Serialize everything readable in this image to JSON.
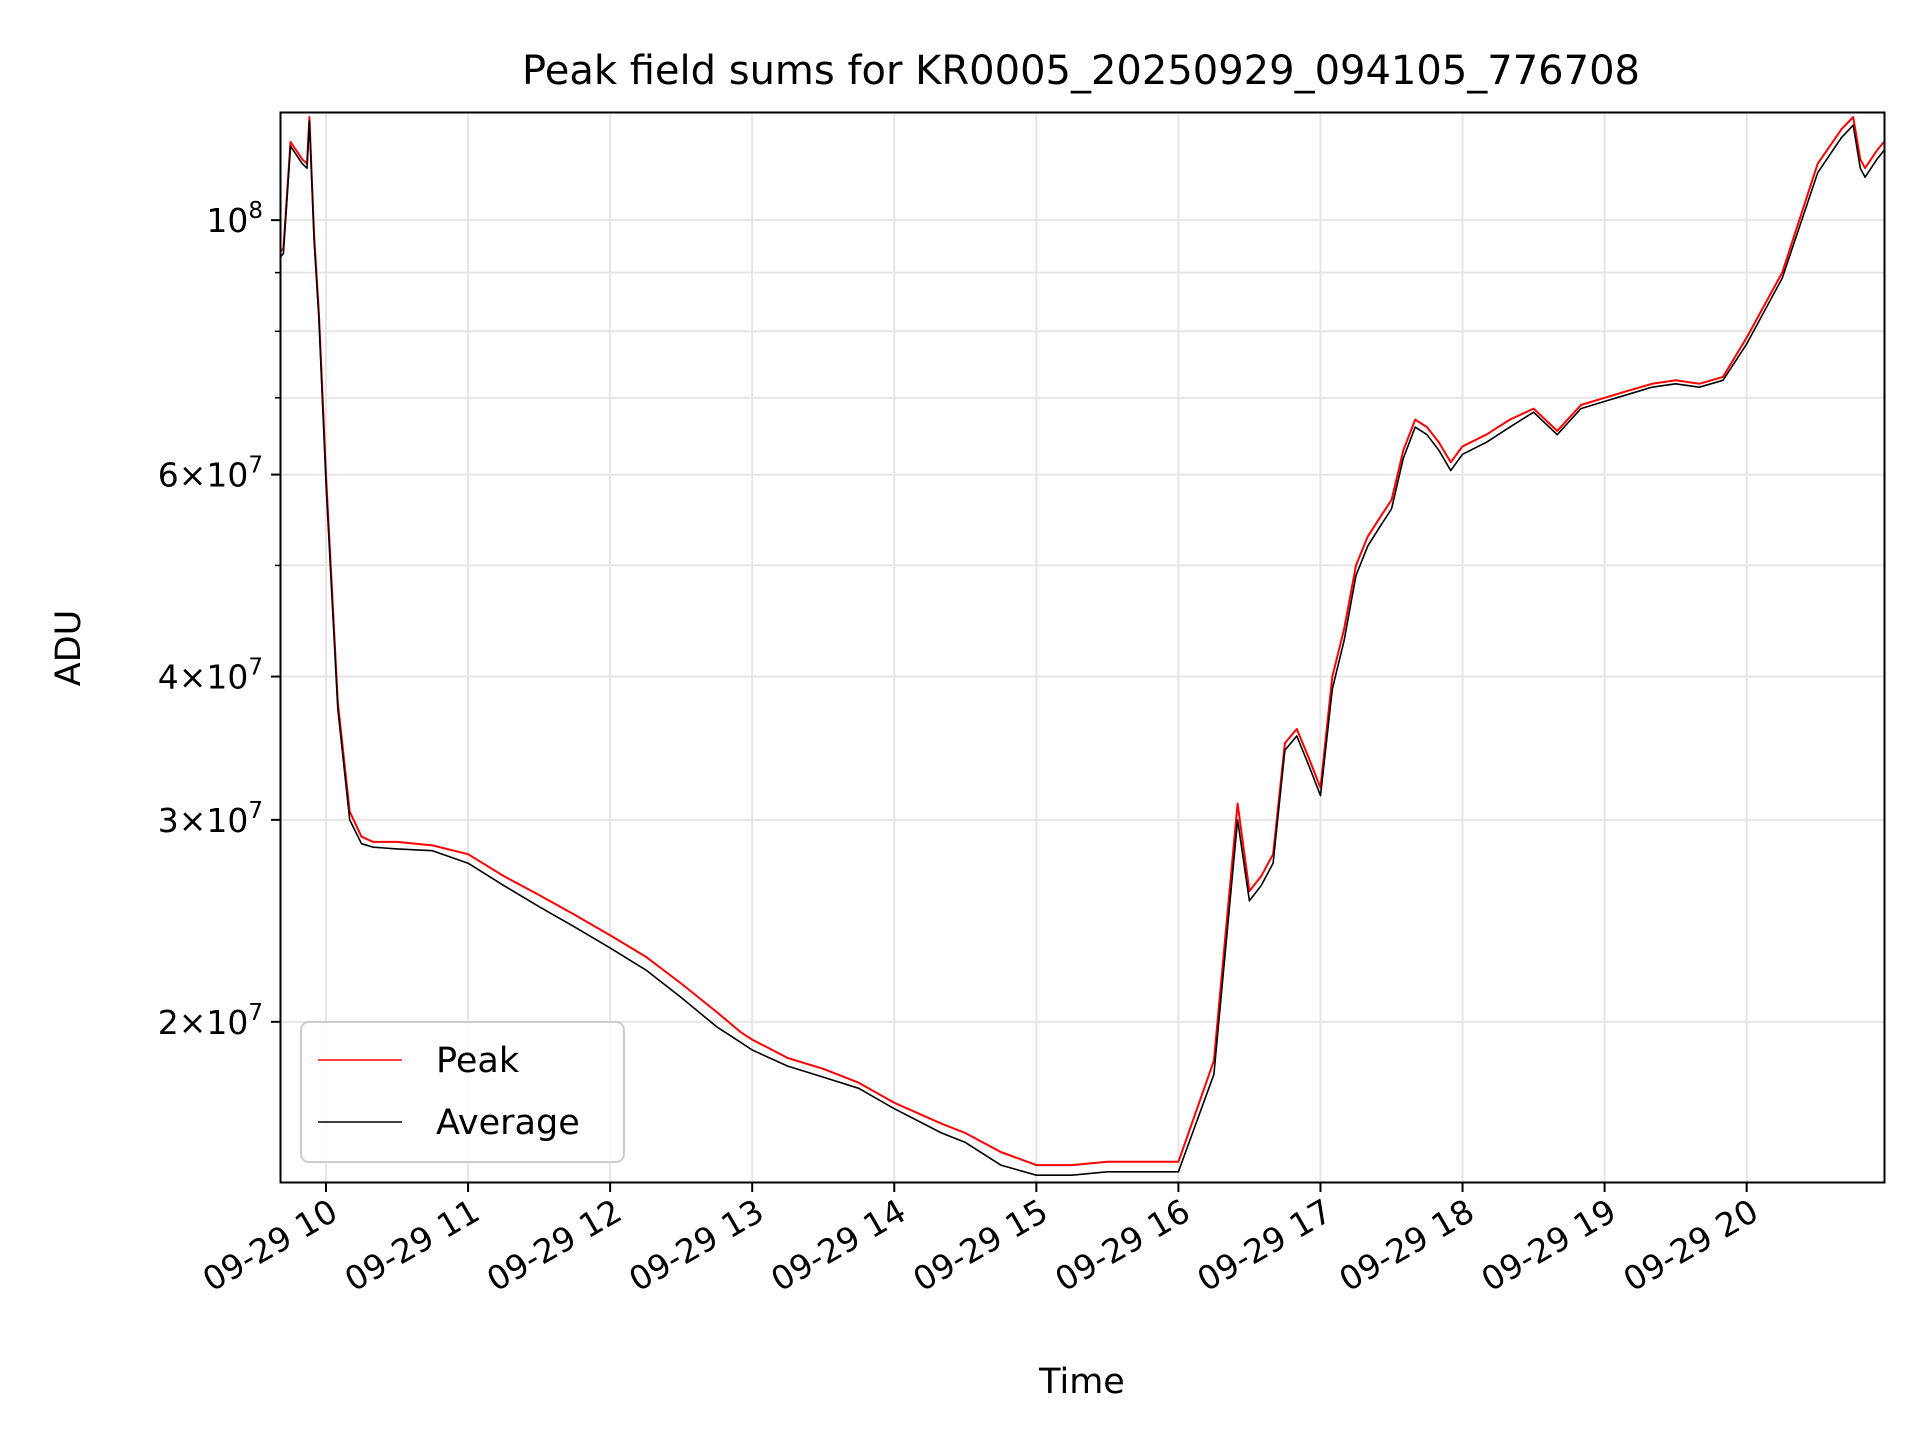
{
  "chart_data": {
    "type": "line",
    "title": "Peak field sums for KR0005_20250929_094105_776708",
    "xlabel": "Time",
    "ylabel": "ADU",
    "yscale": "log",
    "ylim": [
      14500000,
      124000000
    ],
    "xlim": [
      "09-29 09:41",
      "09-29 20:58"
    ],
    "grid": true,
    "legend_position": "lower-left",
    "x_ticks": [
      "09-29 10",
      "09-29 11",
      "09-29 12",
      "09-29 13",
      "09-29 14",
      "09-29 15",
      "09-29 16",
      "09-29 17",
      "09-29 18",
      "09-29 19",
      "09-29 20"
    ],
    "y_ticks": [
      {
        "value": 20000000,
        "coef": "2",
        "exp": "7"
      },
      {
        "value": 30000000,
        "coef": "3",
        "exp": "7"
      },
      {
        "value": 40000000,
        "coef": "4",
        "exp": "7"
      },
      {
        "value": 60000000,
        "coef": "6",
        "exp": "7"
      },
      {
        "value": 100000000,
        "coef": "",
        "exp": "8"
      }
    ],
    "series": [
      {
        "name": "Peak",
        "color": "#ff0000",
        "x": [
          "09:41",
          "09:42",
          "09:45",
          "09:50",
          "09:52",
          "09:53",
          "09:55",
          "09:57",
          "10:00",
          "10:05",
          "10:10",
          "10:15",
          "10:20",
          "10:30",
          "10:45",
          "11:00",
          "11:15",
          "11:30",
          "11:45",
          "12:00",
          "12:15",
          "12:30",
          "12:45",
          "12:55",
          "13:00",
          "13:15",
          "13:30",
          "13:45",
          "14:00",
          "14:20",
          "14:30",
          "14:45",
          "15:00",
          "15:15",
          "15:30",
          "15:45",
          "16:00",
          "16:15",
          "16:25",
          "16:30",
          "16:35",
          "16:40",
          "16:45",
          "16:50",
          "16:55",
          "17:00",
          "17:05",
          "17:10",
          "17:15",
          "17:20",
          "17:25",
          "17:30",
          "17:35",
          "17:40",
          "17:45",
          "17:50",
          "17:55",
          "18:00",
          "18:10",
          "18:20",
          "18:30",
          "18:40",
          "18:50",
          "19:00",
          "19:10",
          "19:20",
          "19:30",
          "19:40",
          "19:50",
          "20:00",
          "20:15",
          "20:30",
          "20:40",
          "20:45",
          "20:48",
          "20:50",
          "20:55",
          "20:58"
        ],
        "y": [
          94000000,
          94500000,
          117000000,
          113000000,
          112000000,
          123000000,
          97000000,
          83000000,
          60000000,
          38000000,
          30500000,
          29000000,
          28700000,
          28700000,
          28500000,
          28000000,
          26800000,
          25800000,
          24800000,
          23800000,
          22800000,
          21600000,
          20400000,
          19600000,
          19300000,
          18600000,
          18200000,
          17700000,
          17000000,
          16300000,
          16000000,
          15400000,
          15000000,
          15000000,
          15100000,
          15100000,
          15100000,
          18500000,
          31000000,
          26000000,
          26800000,
          28000000,
          35000000,
          36000000,
          34000000,
          32000000,
          40000000,
          44000000,
          50000000,
          53000000,
          55000000,
          57000000,
          63000000,
          67000000,
          66000000,
          64000000,
          61500000,
          63500000,
          65000000,
          67000000,
          68500000,
          65500000,
          69000000,
          70000000,
          71000000,
          72000000,
          72500000,
          72000000,
          73000000,
          79000000,
          90000000,
          112000000,
          120000000,
          123000000,
          113000000,
          111000000,
          115000000,
          117000000
        ]
      },
      {
        "name": "Average",
        "color": "#000000",
        "x": [
          "09:41",
          "09:42",
          "09:45",
          "09:50",
          "09:52",
          "09:53",
          "09:55",
          "09:57",
          "10:00",
          "10:05",
          "10:10",
          "10:15",
          "10:20",
          "10:30",
          "10:45",
          "11:00",
          "11:15",
          "11:30",
          "11:45",
          "12:00",
          "12:15",
          "12:30",
          "12:45",
          "12:55",
          "13:00",
          "13:15",
          "13:30",
          "13:45",
          "14:00",
          "14:20",
          "14:30",
          "14:45",
          "15:00",
          "15:15",
          "15:30",
          "15:45",
          "16:00",
          "16:15",
          "16:25",
          "16:30",
          "16:35",
          "16:40",
          "16:45",
          "16:50",
          "16:55",
          "17:00",
          "17:05",
          "17:10",
          "17:15",
          "17:20",
          "17:25",
          "17:30",
          "17:35",
          "17:40",
          "17:45",
          "17:50",
          "17:55",
          "18:00",
          "18:10",
          "18:20",
          "18:30",
          "18:40",
          "18:50",
          "19:00",
          "19:10",
          "19:20",
          "19:30",
          "19:40",
          "19:50",
          "20:00",
          "20:15",
          "20:30",
          "20:40",
          "20:45",
          "20:48",
          "20:50",
          "20:55",
          "20:58"
        ],
        "y": [
          93000000,
          93500000,
          116000000,
          112000000,
          111000000,
          122000000,
          96000000,
          82000000,
          59000000,
          37500000,
          30000000,
          28600000,
          28400000,
          28300000,
          28200000,
          27500000,
          26300000,
          25200000,
          24200000,
          23200000,
          22200000,
          21000000,
          19800000,
          19200000,
          18900000,
          18300000,
          17900000,
          17500000,
          16800000,
          16000000,
          15700000,
          15000000,
          14700000,
          14700000,
          14800000,
          14800000,
          14800000,
          18000000,
          30000000,
          25500000,
          26300000,
          27500000,
          34500000,
          35500000,
          33500000,
          31500000,
          39000000,
          43000000,
          49000000,
          52000000,
          54000000,
          56000000,
          62000000,
          66000000,
          65000000,
          63000000,
          60500000,
          62500000,
          64000000,
          66000000,
          68000000,
          65000000,
          68500000,
          69500000,
          70500000,
          71500000,
          72000000,
          71500000,
          72500000,
          78000000,
          89000000,
          110000000,
          118000000,
          121000000,
          111000000,
          109000000,
          113000000,
          115000000
        ]
      }
    ]
  }
}
